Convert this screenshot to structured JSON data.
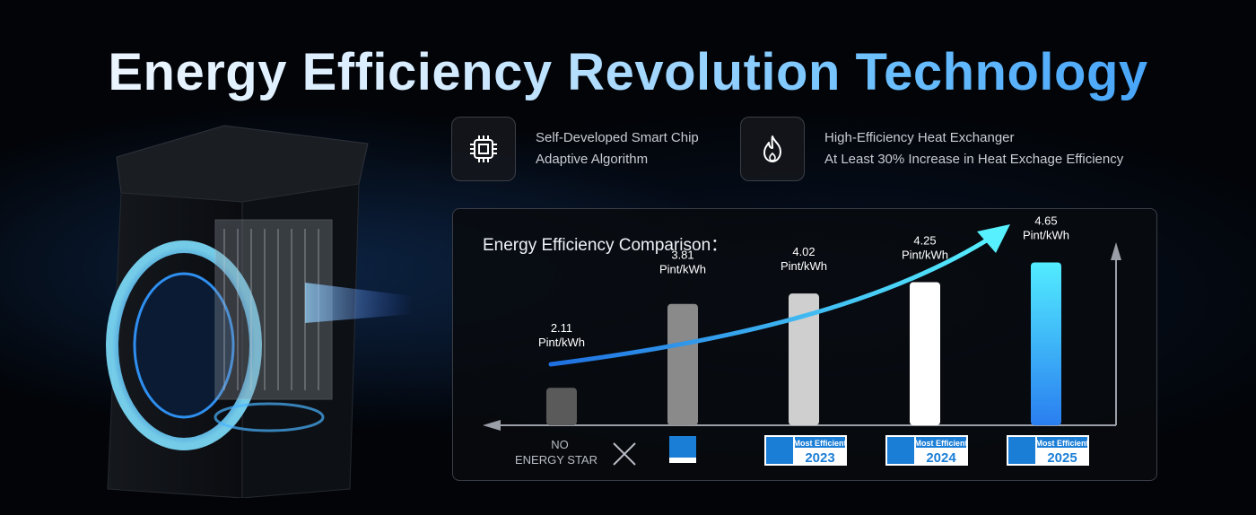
{
  "headline": "Energy Efficiency Revolution Technology",
  "features": [
    {
      "icon": "chip-icon",
      "lines": [
        "Self-Developed Smart Chip",
        "Adaptive Algorithm"
      ]
    },
    {
      "icon": "flame-icon",
      "lines": [
        "High-Efficiency Heat Exchanger",
        "At Least 30% Increase in Heat Exchage Efficiency"
      ]
    }
  ],
  "chart_data": {
    "type": "bar",
    "title": "Energy Efficiency Comparison：",
    "categories": [
      "NO ENERGY STAR",
      "ENERGY STAR",
      "Most Efficient 2023",
      "Most Efficient 2024",
      "Most Efficient 2025"
    ],
    "values": [
      2.11,
      3.81,
      4.02,
      4.25,
      4.65
    ],
    "value_labels": [
      "2.11",
      "3.81",
      "4.02",
      "4.25",
      "4.65"
    ],
    "unit": "Pint/kWh",
    "colors": [
      "#5a5a5a",
      "#8a8a8a",
      "#cfcfcf",
      "#ffffff",
      "#38b6ff"
    ],
    "ylim": [
      0,
      5
    ],
    "grid": false,
    "legend": "none",
    "category_labels": {
      "no_energy_star": [
        "NO",
        "ENERGY STAR"
      ],
      "badges": [
        {
          "top": "",
          "year": ""
        },
        {
          "top": "Most Efficient",
          "year": "2023"
        },
        {
          "top": "Most Efficient",
          "year": "2024"
        },
        {
          "top": "Most Efficient",
          "year": "2025"
        }
      ]
    }
  }
}
